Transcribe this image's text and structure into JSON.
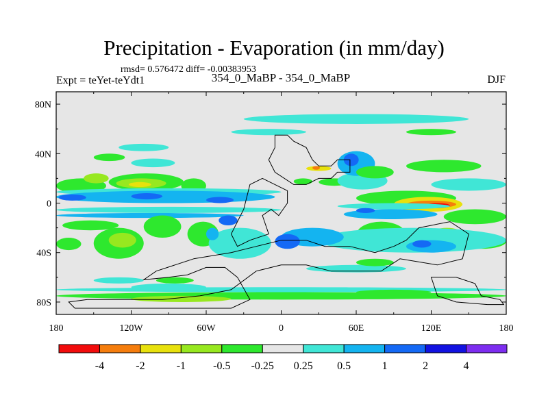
{
  "chart_data": {
    "type": "heatmap",
    "title": "Precipitation - Evaporation (in mm/day)",
    "stats_label": "rmsd= 0.576472 diff= -0.00383953",
    "experiment_label": "Expt = teYet-teYdt1",
    "subtitle": "354_0_MaBP - 354_0_MaBP",
    "season": "DJF",
    "x_ticks": [
      "180",
      "120W",
      "60W",
      "0",
      "60E",
      "120E",
      "180"
    ],
    "y_ticks": [
      "80N",
      "40N",
      "0",
      "40S",
      "80S"
    ],
    "xlim": [
      -180,
      180
    ],
    "ylim": [
      -90,
      90
    ],
    "colorbar": {
      "colors": [
        "#f20c0c",
        "#f57d0d",
        "#e8e10d",
        "#97e81f",
        "#2ee82e",
        "#e6e6e6",
        "#40e6d6",
        "#14b4f0",
        "#1469f5",
        "#1212e1",
        "#7d2df0"
      ],
      "labels": [
        "-4",
        "-2",
        "-1",
        "-0.5",
        "-0.25",
        "0.25",
        "0.5",
        "1",
        "2",
        "4"
      ]
    },
    "regions": [
      {
        "level": "green",
        "lon": -180,
        "lat": 20,
        "w": 40,
        "h": 12
      },
      {
        "level": "lightgreen",
        "lon": -158,
        "lat": 24,
        "w": 20,
        "h": 8
      },
      {
        "level": "green",
        "lon": -150,
        "lat": 40,
        "w": 25,
        "h": 6
      },
      {
        "level": "green",
        "lon": -138,
        "lat": 24,
        "w": 60,
        "h": 14
      },
      {
        "level": "lightgreen",
        "lon": -132,
        "lat": 20,
        "w": 40,
        "h": 8
      },
      {
        "level": "yellow",
        "lon": -122,
        "lat": 17,
        "w": 18,
        "h": 4
      },
      {
        "level": "green",
        "lon": -80,
        "lat": 20,
        "w": 20,
        "h": 12
      },
      {
        "level": "cyan",
        "lon": -120,
        "lat": 36,
        "w": 35,
        "h": 7
      },
      {
        "level": "cyan",
        "lon": -180,
        "lat": 12,
        "w": 180,
        "h": 6
      },
      {
        "level": "skyblue",
        "lon": -180,
        "lat": 10,
        "w": 175,
        "h": 10
      },
      {
        "level": "blue",
        "lon": -178,
        "lat": 7,
        "w": 22,
        "h": 5
      },
      {
        "level": "blue",
        "lon": -120,
        "lat": 8,
        "w": 25,
        "h": 5
      },
      {
        "level": "blue",
        "lon": -60,
        "lat": 5,
        "w": 22,
        "h": 5
      },
      {
        "level": "cyan",
        "lon": -180,
        "lat": -3,
        "w": 180,
        "h": 5
      },
      {
        "level": "skyblue",
        "lon": -180,
        "lat": -8,
        "w": 150,
        "h": 4
      },
      {
        "level": "green",
        "lon": -175,
        "lat": -14,
        "w": 45,
        "h": 8
      },
      {
        "level": "green",
        "lon": -150,
        "lat": -20,
        "w": 40,
        "h": 25
      },
      {
        "level": "lightgreen",
        "lon": -138,
        "lat": -24,
        "w": 22,
        "h": 12
      },
      {
        "level": "green",
        "lon": -110,
        "lat": -10,
        "w": 30,
        "h": 18
      },
      {
        "level": "green",
        "lon": -75,
        "lat": -15,
        "w": 25,
        "h": 20
      },
      {
        "level": "green",
        "lon": -180,
        "lat": -28,
        "w": 20,
        "h": 10
      },
      {
        "level": "cyan",
        "lon": -58,
        "lat": -20,
        "w": 50,
        "h": 25
      },
      {
        "level": "blue",
        "lon": -50,
        "lat": -10,
        "w": 15,
        "h": 8
      },
      {
        "level": "skyblue",
        "lon": -60,
        "lat": -20,
        "w": 10,
        "h": 10
      },
      {
        "level": "green",
        "lon": -100,
        "lat": -60,
        "w": 30,
        "h": 5
      },
      {
        "level": "cyan",
        "lon": -150,
        "lat": -60,
        "w": 40,
        "h": 5
      },
      {
        "level": "cyan",
        "lon": -120,
        "lat": -65,
        "w": 60,
        "h": 6
      },
      {
        "level": "cyan",
        "lon": -130,
        "lat": 48,
        "w": 40,
        "h": 6
      },
      {
        "level": "cyan",
        "lon": -30,
        "lat": 72,
        "w": 180,
        "h": 8
      },
      {
        "level": "green",
        "lon": 100,
        "lat": 60,
        "w": 40,
        "h": 5
      },
      {
        "level": "cyan",
        "lon": -40,
        "lat": 60,
        "w": 60,
        "h": 5
      },
      {
        "level": "green",
        "lon": 30,
        "lat": 20,
        "w": 25,
        "h": 6
      },
      {
        "level": "cyan",
        "lon": 45,
        "lat": 25,
        "w": 40,
        "h": 14
      },
      {
        "level": "skyblue",
        "lon": 45,
        "lat": 42,
        "w": 30,
        "h": 20
      },
      {
        "level": "blue",
        "lon": 50,
        "lat": 40,
        "w": 12,
        "h": 10
      },
      {
        "level": "yellow",
        "lon": 20,
        "lat": 30,
        "w": 20,
        "h": 4
      },
      {
        "level": "orange",
        "lon": 25,
        "lat": 30,
        "w": 6,
        "h": 3
      },
      {
        "level": "green",
        "lon": 10,
        "lat": 20,
        "w": 15,
        "h": 5
      },
      {
        "level": "green",
        "lon": 60,
        "lat": 30,
        "w": 30,
        "h": 10
      },
      {
        "level": "green",
        "lon": 100,
        "lat": 35,
        "w": 60,
        "h": 10
      },
      {
        "level": "green",
        "lon": 60,
        "lat": 10,
        "w": 80,
        "h": 12
      },
      {
        "level": "yellow",
        "lon": 90,
        "lat": 5,
        "w": 55,
        "h": 12
      },
      {
        "level": "orange",
        "lon": 100,
        "lat": 2,
        "w": 40,
        "h": 6
      },
      {
        "level": "red",
        "lon": 115,
        "lat": 0,
        "w": 20,
        "h": 4
      },
      {
        "level": "cyan",
        "lon": 45,
        "lat": 0,
        "w": 90,
        "h": 5
      },
      {
        "level": "skyblue",
        "lon": 50,
        "lat": -5,
        "w": 75,
        "h": 8
      },
      {
        "level": "blue",
        "lon": 60,
        "lat": -4,
        "w": 15,
        "h": 4
      },
      {
        "level": "cyan",
        "lon": 120,
        "lat": 20,
        "w": 60,
        "h": 10
      },
      {
        "level": "green",
        "lon": 130,
        "lat": -5,
        "w": 50,
        "h": 12
      },
      {
        "level": "green",
        "lon": 60,
        "lat": -15,
        "w": 40,
        "h": 22
      },
      {
        "level": "green",
        "lon": 140,
        "lat": -25,
        "w": 40,
        "h": 12
      },
      {
        "level": "lightgreen",
        "lon": 120,
        "lat": -20,
        "w": 25,
        "h": 10
      },
      {
        "level": "cyan",
        "lon": 30,
        "lat": -20,
        "w": 150,
        "h": 20
      },
      {
        "level": "skyblue",
        "lon": 0,
        "lat": -20,
        "w": 50,
        "h": 15
      },
      {
        "level": "blue",
        "lon": -5,
        "lat": -25,
        "w": 20,
        "h": 12
      },
      {
        "level": "skyblue",
        "lon": 100,
        "lat": -30,
        "w": 40,
        "h": 10
      },
      {
        "level": "blue",
        "lon": 105,
        "lat": -30,
        "w": 15,
        "h": 6
      },
      {
        "level": "cyan",
        "lon": 20,
        "lat": -50,
        "w": 80,
        "h": 6
      },
      {
        "level": "green",
        "lon": 60,
        "lat": -45,
        "w": 30,
        "h": 6
      },
      {
        "level": "green",
        "lon": -180,
        "lat": -72,
        "w": 360,
        "h": 6
      },
      {
        "level": "lightgreen",
        "lon": -120,
        "lat": -75,
        "w": 80,
        "h": 5
      },
      {
        "level": "cyan",
        "lon": -180,
        "lat": -68,
        "w": 360,
        "h": 4
      },
      {
        "level": "green",
        "lon": 60,
        "lat": -70,
        "w": 60,
        "h": 4
      }
    ],
    "continents": [
      {
        "name": "northern-continent",
        "points": [
          [
            -5,
            55
          ],
          [
            5,
            55
          ],
          [
            10,
            50
          ],
          [
            20,
            45
          ],
          [
            25,
            35
          ],
          [
            30,
            30
          ],
          [
            40,
            30
          ],
          [
            45,
            35
          ],
          [
            55,
            35
          ],
          [
            55,
            25
          ],
          [
            45,
            25
          ],
          [
            40,
            20
          ],
          [
            30,
            20
          ],
          [
            20,
            15
          ],
          [
            10,
            15
          ],
          [
            -5,
            25
          ],
          [
            -10,
            35
          ],
          [
            -5,
            45
          ]
        ]
      },
      {
        "name": "equatorial-continent",
        "points": [
          [
            -25,
            15
          ],
          [
            -15,
            20
          ],
          [
            -5,
            15
          ],
          [
            5,
            10
          ],
          [
            5,
            0
          ],
          [
            -2,
            -10
          ],
          [
            -8,
            -5
          ],
          [
            -15,
            -10
          ],
          [
            -10,
            -25
          ],
          [
            -25,
            -30
          ],
          [
            -35,
            -35
          ],
          [
            -40,
            -25
          ],
          [
            -30,
            -5
          ]
        ]
      },
      {
        "name": "southern-continent",
        "points": [
          [
            -70,
            -45
          ],
          [
            -40,
            -40
          ],
          [
            -20,
            -35
          ],
          [
            0,
            -30
          ],
          [
            20,
            -30
          ],
          [
            35,
            -35
          ],
          [
            55,
            -35
          ],
          [
            75,
            -40
          ],
          [
            90,
            -35
          ],
          [
            100,
            -30
          ],
          [
            110,
            -20
          ],
          [
            135,
            -15
          ],
          [
            150,
            -25
          ],
          [
            145,
            -45
          ],
          [
            125,
            -50
          ],
          [
            95,
            -45
          ],
          [
            80,
            -55
          ],
          [
            60,
            -55
          ],
          [
            40,
            -55
          ],
          [
            20,
            -50
          ],
          [
            0,
            -50
          ],
          [
            -20,
            -55
          ],
          [
            -40,
            -70
          ],
          [
            -65,
            -75
          ],
          [
            -95,
            -78
          ],
          [
            -155,
            -78
          ],
          [
            -170,
            -80
          ],
          [
            -165,
            -85
          ],
          [
            -40,
            -85
          ],
          [
            -25,
            -78
          ],
          [
            -35,
            -60
          ],
          [
            -45,
            -52
          ],
          [
            -60,
            -52
          ],
          [
            -75,
            -58
          ],
          [
            -90,
            -60
          ],
          [
            -110,
            -62
          ],
          [
            -100,
            -55
          ],
          [
            -85,
            -50
          ]
        ]
      },
      {
        "name": "southeast-island",
        "points": [
          [
            120,
            -60
          ],
          [
            140,
            -60
          ],
          [
            155,
            -65
          ],
          [
            160,
            -75
          ],
          [
            175,
            -78
          ],
          [
            178,
            -82
          ],
          [
            165,
            -82
          ],
          [
            140,
            -80
          ],
          [
            125,
            -75
          ]
        ]
      }
    ]
  }
}
